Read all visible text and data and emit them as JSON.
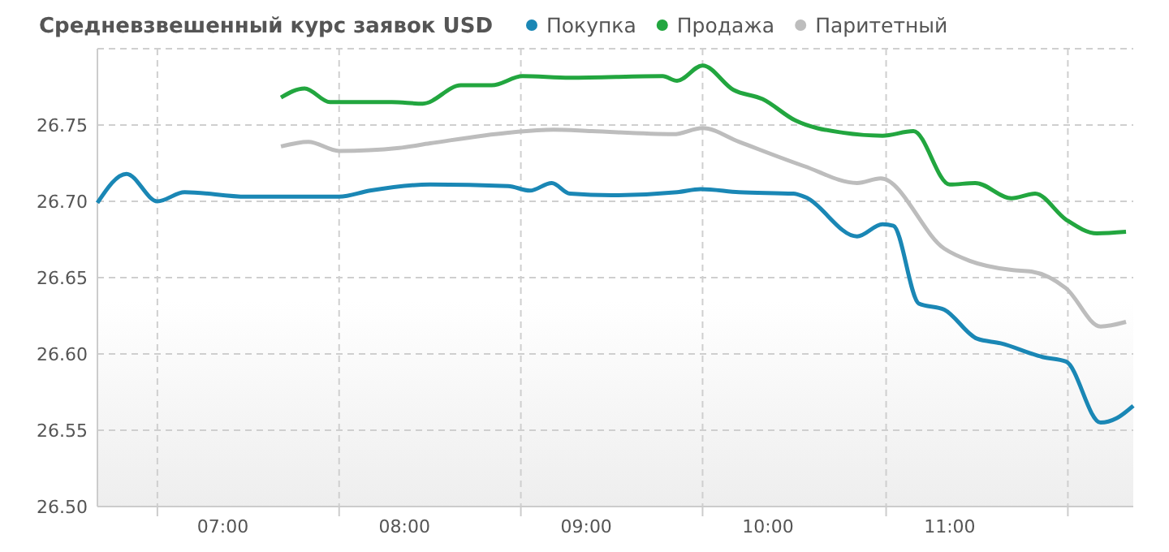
{
  "chart_data": {
    "type": "line",
    "title": "Средневзвешенный курс заявок USD",
    "legend": "top",
    "grid": true,
    "marker": "none",
    "line_style": "solid",
    "xlim": [
      6.31,
      12.01
    ],
    "xticks": [
      {
        "value": 6.64,
        "label": null
      },
      {
        "value": 7,
        "label": "07:00"
      },
      {
        "value": 7.64,
        "label": null
      },
      {
        "value": 8,
        "label": "08:00"
      },
      {
        "value": 8.64,
        "label": null
      },
      {
        "value": 9,
        "label": "09:00"
      },
      {
        "value": 9.64,
        "label": null
      },
      {
        "value": 10,
        "label": "10:00"
      },
      {
        "value": 10.65,
        "label": null
      },
      {
        "value": 11,
        "label": "11:00"
      },
      {
        "value": 11.65,
        "label": null
      }
    ],
    "ylim": [
      26.5,
      26.8
    ],
    "yticks": [
      {
        "value": 26.5,
        "label": "26.50"
      },
      {
        "value": 26.55,
        "label": "26.55"
      },
      {
        "value": 26.6,
        "label": "26.60"
      },
      {
        "value": 26.65,
        "label": "26.65"
      },
      {
        "value": 26.7,
        "label": "26.70"
      },
      {
        "value": 26.75,
        "label": "26.75"
      },
      {
        "value": 26.8,
        "label": null
      }
    ],
    "series": [
      {
        "name": "Покупка",
        "color": "#1a87b5",
        "x": [
          6.31,
          6.47,
          6.64,
          6.79,
          7.13,
          7.64,
          7.81,
          8.14,
          8.57,
          8.69,
          8.81,
          8.91,
          9.14,
          9.5,
          9.63,
          9.84,
          10.14,
          10.2,
          10.49,
          10.63,
          10.69,
          10.83,
          10.97,
          11.15,
          11.28,
          11.51,
          11.64,
          11.83,
          11.92,
          12.01
        ],
        "values": [
          26.699,
          26.718,
          26.7,
          26.706,
          26.703,
          26.703,
          26.707,
          26.711,
          26.71,
          26.707,
          26.712,
          26.705,
          26.704,
          26.706,
          26.708,
          26.706,
          26.705,
          26.703,
          26.677,
          26.685,
          26.684,
          26.633,
          26.629,
          26.61,
          26.607,
          26.598,
          26.595,
          26.555,
          26.558,
          26.566
        ]
      },
      {
        "name": "Продажа",
        "color": "#22a63f",
        "x": [
          7.32,
          7.45,
          7.59,
          7.93,
          8.1,
          8.31,
          8.48,
          8.65,
          8.91,
          9.42,
          9.5,
          9.64,
          9.81,
          9.97,
          10.15,
          10.41,
          10.63,
          10.8,
          11.0,
          11.14,
          11.34,
          11.47,
          11.64,
          11.81,
          11.97
        ],
        "values": [
          26.768,
          26.774,
          26.765,
          26.765,
          26.764,
          26.776,
          26.776,
          26.782,
          26.781,
          26.782,
          26.779,
          26.789,
          26.773,
          26.767,
          26.753,
          26.745,
          26.743,
          26.746,
          26.711,
          26.712,
          26.702,
          26.705,
          26.688,
          26.679,
          26.68
        ]
      },
      {
        "name": "Паритетный",
        "color": "#bdbdbd",
        "x": [
          7.32,
          7.47,
          7.64,
          7.97,
          8.14,
          8.57,
          8.82,
          9.03,
          9.48,
          9.64,
          9.84,
          10.2,
          10.49,
          10.62,
          10.97,
          11.11,
          11.34,
          11.45,
          11.64,
          11.83,
          11.97
        ],
        "values": [
          26.736,
          26.739,
          26.733,
          26.735,
          26.738,
          26.745,
          26.747,
          26.746,
          26.744,
          26.748,
          26.739,
          26.723,
          26.712,
          26.715,
          26.669,
          26.661,
          26.655,
          26.654,
          26.643,
          26.618,
          26.621
        ]
      }
    ]
  }
}
